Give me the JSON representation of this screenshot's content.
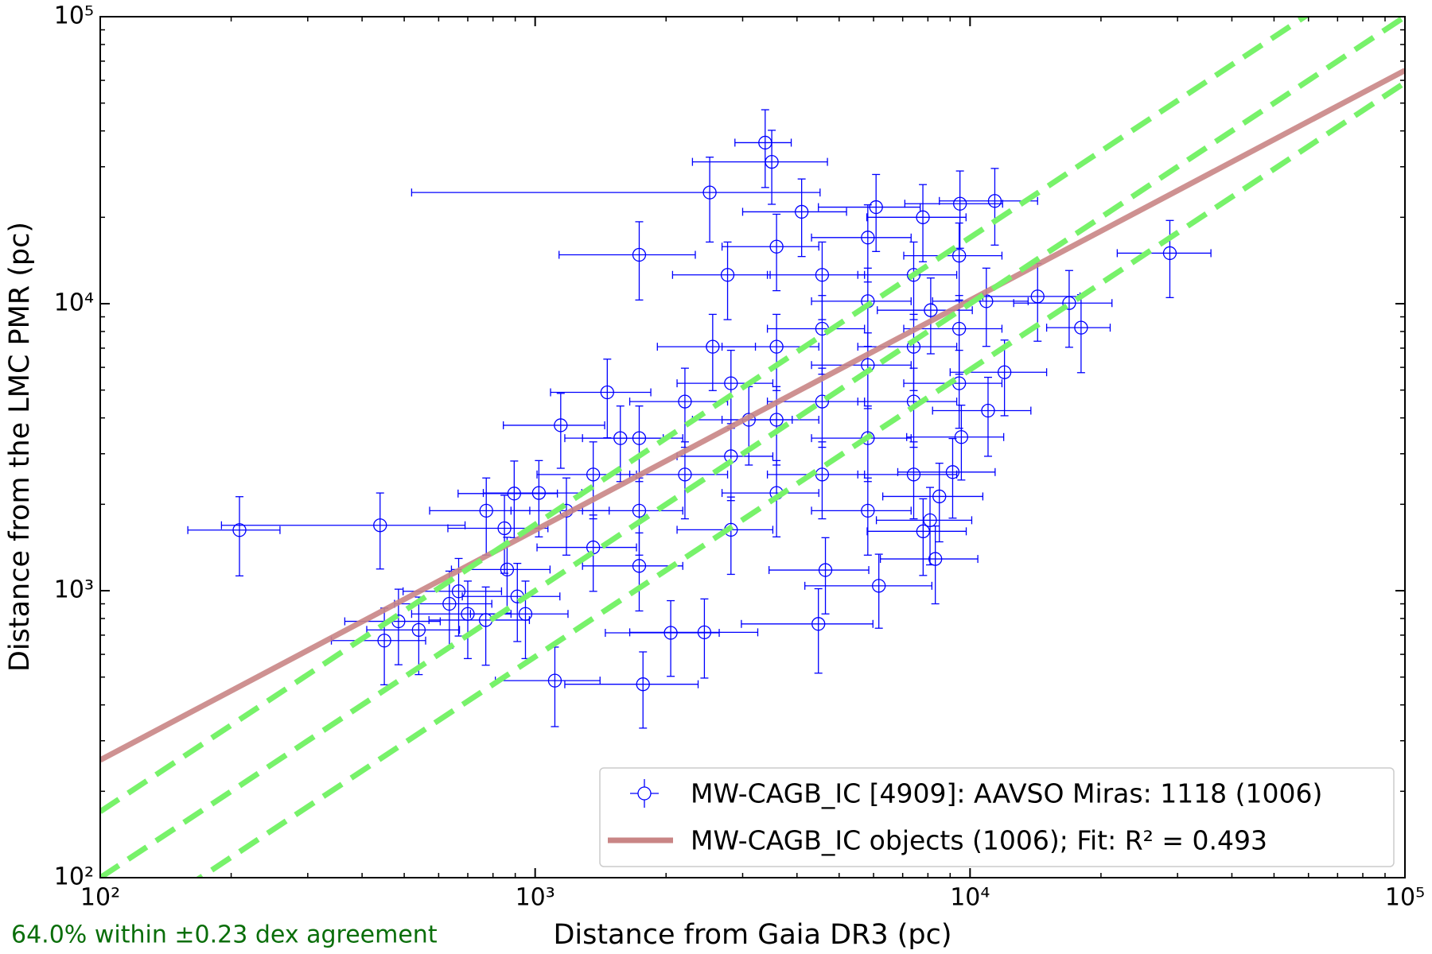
{
  "chart_data": {
    "type": "scatter",
    "xlabel": "Distance from Gaia DR3 (pc)",
    "ylabel": "Distance from the LMC PMR (pc)",
    "annotation": "64.0% within ±0.23 dex agreement",
    "log_x": true,
    "log_y": true,
    "xlim": [
      100,
      100000
    ],
    "ylim": [
      100,
      100000
    ],
    "xticks": [
      {
        "value": 100,
        "label": "10²"
      },
      {
        "value": 1000,
        "label": "10³"
      },
      {
        "value": 10000,
        "label": "10⁴"
      },
      {
        "value": 100000,
        "label": "10⁵"
      }
    ],
    "yticks": [
      {
        "value": 100,
        "label": "10²"
      },
      {
        "value": 1000,
        "label": "10³"
      },
      {
        "value": 10000,
        "label": "10⁴"
      },
      {
        "value": 100000,
        "label": "10⁵"
      }
    ],
    "minor_ticks": true,
    "legend": "lower right",
    "series": [
      {
        "name": "MW-CAGB_IC [4909]: AAVSO Miras: 1118 (1006)",
        "color": "#0000ff",
        "x": [
          209,
          440,
          1735,
          2520,
          3380,
          3500,
          28800,
          18000,
          1110,
          1770,
          6170,
          4480,
          2450,
          2050,
          450,
          485,
          540,
          635,
          667,
          700,
          770,
          772,
          850,
          862,
          895,
          1020,
          950,
          910,
          1145,
          1465,
          4100,
          6080,
          9480,
          11400,
          7790,
          2770,
          14300,
          16900,
          12000,
          11000,
          9550,
          9120,
          8500,
          8090,
          7800,
          8320,
          4650,
          1360,
          1735,
          2210,
          2820,
          3590,
          4570,
          5820,
          7420,
          9440,
          1735,
          2210,
          2820,
          3590,
          4570,
          5820,
          7420,
          9440,
          1360,
          1735,
          2820,
          3590,
          4570,
          5820,
          7420,
          9440,
          7420,
          5820,
          1180,
          1570,
          4570,
          3590,
          5820,
          8120,
          10900,
          2560,
          3100
        ],
        "values": [
          1626,
          1690,
          14800,
          24400,
          36400,
          31200,
          15000,
          8250,
          486,
          472,
          1040,
          766,
          716,
          713,
          670,
          782,
          730,
          900,
          995,
          830,
          790,
          1900,
          1650,
          1185,
          2180,
          2190,
          830,
          955,
          3770,
          4910,
          20900,
          21700,
          22300,
          22800,
          20000,
          12600,
          10600,
          10050,
          5770,
          4240,
          3430,
          2590,
          2130,
          1760,
          1610,
          1290,
          1180,
          2540,
          3400,
          4560,
          5280,
          7080,
          8180,
          10200,
          12600,
          14700,
          1900,
          2540,
          2940,
          3940,
          4560,
          6110,
          7080,
          8180,
          1415,
          1220,
          1630,
          2190,
          2540,
          3400,
          4560,
          5280,
          2540,
          1900,
          1900,
          3400,
          12600,
          15800,
          17000,
          9490,
          10200,
          7080,
          3940
        ],
        "xerr": [
          50,
          250,
          600,
          2000,
          500,
          1200,
          7000,
          3000,
          300,
          600,
          2000,
          1500,
          800,
          600,
          110,
          120,
          130,
          160,
          170,
          180,
          200,
          200,
          220,
          220,
          230,
          260,
          240,
          230,
          300,
          380,
          1100,
          1600,
          2400,
          2900,
          2000,
          700,
          3600,
          4300,
          3000,
          2800,
          2400,
          2300,
          2200,
          2000,
          2000,
          2100,
          1200,
          350,
          450,
          560,
          700,
          900,
          1150,
          1500,
          1900,
          2400,
          450,
          560,
          700,
          900,
          1150,
          1500,
          1900,
          2400,
          350,
          450,
          700,
          900,
          1150,
          1500,
          1900,
          2400,
          1900,
          1500,
          300,
          400,
          1150,
          900,
          1500,
          2000,
          2700,
          650,
          800
        ],
        "yerr": [
          500,
          500,
          4500,
          8000,
          11000,
          9000,
          4500,
          2500,
          150,
          140,
          300,
          250,
          220,
          210,
          200,
          230,
          220,
          270,
          300,
          250,
          240,
          570,
          500,
          350,
          650,
          650,
          250,
          290,
          1100,
          1500,
          6300,
          6500,
          6700,
          6800,
          6000,
          3800,
          3200,
          3000,
          1700,
          1300,
          1000,
          800,
          650,
          530,
          480,
          390,
          350,
          760,
          1000,
          1400,
          1600,
          2100,
          2500,
          3100,
          3800,
          4400,
          570,
          760,
          880,
          1200,
          1400,
          1800,
          2100,
          2500,
          420,
          370,
          490,
          650,
          760,
          1000,
          1400,
          1600,
          760,
          570,
          570,
          1000,
          3800,
          4700,
          5100,
          2800,
          3100,
          2100,
          1200
        ]
      }
    ],
    "fit": {
      "name": "MW-CAGB_IC objects (1006); Fit: R² = 0.493",
      "color": "#c98585",
      "x": [
        100,
        100000
      ],
      "values": [
        257,
        65000
      ]
    },
    "agreement_lines": {
      "color": "#77f26a",
      "x": [
        100,
        100000
      ],
      "series": [
        {
          "values": [
            170,
            170000
          ]
        },
        {
          "values": [
            100,
            100000
          ]
        },
        {
          "values": [
            58.9,
            58900
          ]
        }
      ]
    }
  }
}
